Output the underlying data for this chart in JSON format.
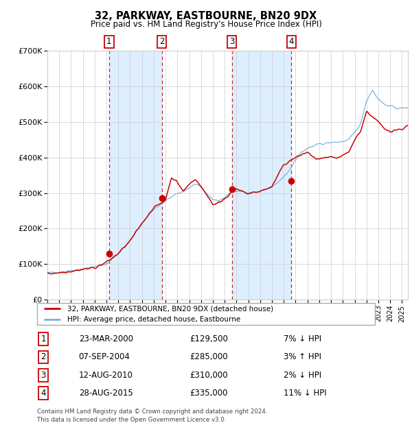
{
  "title": "32, PARKWAY, EASTBOURNE, BN20 9DX",
  "subtitle": "Price paid vs. HM Land Registry's House Price Index (HPI)",
  "ylim": [
    0,
    700000
  ],
  "yticks": [
    0,
    100000,
    200000,
    300000,
    400000,
    500000,
    600000,
    700000
  ],
  "ytick_labels": [
    "£0",
    "£100K",
    "£200K",
    "£300K",
    "£400K",
    "£500K",
    "£600K",
    "£700K"
  ],
  "hpi_color": "#7ab4d8",
  "price_color": "#cc0000",
  "marker_color": "#cc0000",
  "grid_color": "#cccccc",
  "bg_color": "#ffffff",
  "shade_color": "#ddeeff",
  "dashed_line_color": "#cc0000",
  "transactions": [
    {
      "num": 1,
      "date_str": "23-MAR-2000",
      "price": 129500,
      "pct": "7%",
      "dir": "↓",
      "x_year": 2000.22
    },
    {
      "num": 2,
      "date_str": "07-SEP-2004",
      "price": 285000,
      "pct": "3%",
      "dir": "↑",
      "x_year": 2004.68
    },
    {
      "num": 3,
      "date_str": "12-AUG-2010",
      "price": 310000,
      "pct": "2%",
      "dir": "↓",
      "x_year": 2010.61
    },
    {
      "num": 4,
      "date_str": "28-AUG-2015",
      "price": 335000,
      "pct": "11%",
      "dir": "↓",
      "x_year": 2015.65
    }
  ],
  "legend_label_price": "32, PARKWAY, EASTBOURNE, BN20 9DX (detached house)",
  "legend_label_hpi": "HPI: Average price, detached house, Eastbourne",
  "footer1": "Contains HM Land Registry data © Crown copyright and database right 2024.",
  "footer2": "This data is licensed under the Open Government Licence v3.0.",
  "xlim_start": 1995.0,
  "xlim_end": 2025.5,
  "hpi_anchors_x": [
    1995.0,
    1996.0,
    1997.0,
    1998.0,
    1999.0,
    2000.0,
    2001.0,
    2002.0,
    2003.0,
    2004.0,
    2004.5,
    2005.5,
    2006.5,
    2007.5,
    2008.0,
    2008.5,
    2009.0,
    2009.5,
    2010.0,
    2010.5,
    2011.0,
    2012.0,
    2013.0,
    2014.0,
    2015.0,
    2015.5,
    2016.0,
    2016.5,
    2017.0,
    2017.5,
    2018.0,
    2018.5,
    2019.0,
    2019.5,
    2020.0,
    2020.5,
    2021.0,
    2021.5,
    2022.0,
    2022.5,
    2023.0,
    2023.5,
    2024.0,
    2024.5,
    2025.0,
    2025.5
  ],
  "hpi_anchors_y": [
    75000,
    78000,
    82000,
    87000,
    92000,
    100000,
    130000,
    165000,
    215000,
    255000,
    265000,
    290000,
    305000,
    325000,
    315000,
    298000,
    282000,
    278000,
    288000,
    300000,
    308000,
    300000,
    305000,
    315000,
    345000,
    365000,
    395000,
    415000,
    425000,
    432000,
    438000,
    440000,
    442000,
    444000,
    445000,
    450000,
    470000,
    495000,
    560000,
    590000,
    565000,
    550000,
    545000,
    540000,
    538000,
    542000
  ],
  "price_anchors_x": [
    1995.0,
    1996.0,
    1997.0,
    1998.0,
    1999.0,
    2000.0,
    2001.0,
    2002.0,
    2003.0,
    2004.0,
    2004.5,
    2005.0,
    2005.5,
    2006.0,
    2006.5,
    2007.0,
    2007.5,
    2008.0,
    2008.5,
    2009.0,
    2009.5,
    2010.0,
    2010.5,
    2011.0,
    2012.0,
    2013.0,
    2014.0,
    2015.0,
    2015.5,
    2016.0,
    2016.5,
    2017.0,
    2017.5,
    2018.0,
    2018.5,
    2019.0,
    2019.5,
    2020.0,
    2020.5,
    2021.0,
    2021.5,
    2022.0,
    2022.5,
    2023.0,
    2023.5,
    2024.0,
    2024.5,
    2025.0,
    2025.5
  ],
  "price_anchors_y": [
    73000,
    76000,
    80000,
    85000,
    90000,
    105000,
    130000,
    165000,
    215000,
    260000,
    268000,
    282000,
    345000,
    330000,
    305000,
    325000,
    340000,
    318000,
    295000,
    268000,
    272000,
    285000,
    300000,
    310000,
    298000,
    305000,
    318000,
    380000,
    390000,
    400000,
    408000,
    415000,
    400000,
    395000,
    398000,
    400000,
    398000,
    405000,
    415000,
    450000,
    475000,
    530000,
    515000,
    500000,
    480000,
    475000,
    478000,
    480000,
    490000
  ]
}
